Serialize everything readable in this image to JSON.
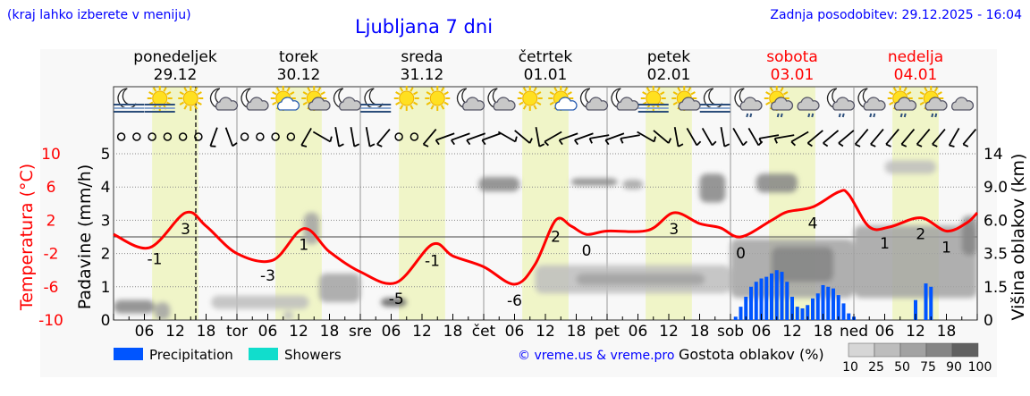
{
  "header": {
    "hint": "(kraj lahko izberete v meniju)",
    "title": "Ljubljana 7 dni",
    "updated": "Zadnja posodobitev: 29.12.2025 - 16:04"
  },
  "colors": {
    "temperature": "#ff0000",
    "precipitation": "#0055ff",
    "showers": "#11ddcc",
    "daylight": "#f0f5c8",
    "weekend": "#ff0000",
    "link": "#0000ff"
  },
  "days": [
    {
      "name": "ponedeljek",
      "date": "29.12",
      "abbr": "",
      "weekend": false
    },
    {
      "name": "torek",
      "date": "30.12",
      "abbr": "tor",
      "weekend": false
    },
    {
      "name": "sreda",
      "date": "31.12",
      "abbr": "sre",
      "weekend": false
    },
    {
      "name": "četrtek",
      "date": "01.01",
      "abbr": "čet",
      "weekend": false
    },
    {
      "name": "petek",
      "date": "02.01",
      "abbr": "pet",
      "weekend": false
    },
    {
      "name": "sobota",
      "date": "03.01",
      "abbr": "sob",
      "weekend": true
    },
    {
      "name": "nedelja",
      "date": "04.01",
      "abbr": "ned",
      "weekend": true
    }
  ],
  "hour_ticks": [
    "06",
    "12",
    "18"
  ],
  "icons": [
    "moon-fog",
    "sun-fog",
    "sun",
    "moon-cloud",
    "moon-cloud",
    "sun-cloud-light",
    "sun-cloud",
    "moon-cloud",
    "moon-fog",
    "sun",
    "sun",
    "moon-cloud",
    "moon-cloud",
    "sun",
    "sun-cloud-light",
    "moon-cloud",
    "moon-cloud",
    "sun-fog",
    "sun-cloud",
    "moon-fog",
    "moon-cloud-rain",
    "sun-cloud-rain",
    "cloud-rain",
    "moon-cloud-rain",
    "moon-cloud-rain",
    "sun-cloud-rain",
    "sun-cloud-rain",
    "cloud"
  ],
  "wind": [
    "calm",
    "calm",
    "calm",
    "calm",
    "calm",
    "calm",
    20,
    340,
    "calm",
    "calm",
    "calm",
    "calm",
    30,
    300,
    350,
    350,
    350,
    40,
    "calm",
    "calm",
    40,
    70,
    70,
    70,
    70,
    300,
    310,
    350,
    60,
    70,
    70,
    80,
    70,
    80,
    300,
    310,
    350,
    330,
    330,
    350,
    330,
    330,
    80,
    80,
    60,
    50,
    50,
    50,
    40,
    40,
    40,
    40,
    40,
    40,
    30,
    40
  ],
  "chart_data": {
    "type": "line",
    "time_unit": "hours from 29.12 00:00",
    "now_hour": 16,
    "daylight_hours": [
      7.5,
      16.5
    ],
    "temperature": {
      "axis_label": "Temperatura (°C)",
      "ticks": [
        10,
        6,
        2,
        -2,
        -6,
        -10
      ],
      "ylim": [
        -10,
        10
      ],
      "points": [
        [
          0,
          0.3
        ],
        [
          7,
          -1.3
        ],
        [
          14,
          2.9
        ],
        [
          18,
          1.3
        ],
        [
          24,
          -2.0
        ],
        [
          31,
          -2.8
        ],
        [
          37,
          1.0
        ],
        [
          42,
          -1.8
        ],
        [
          48,
          -4.2
        ],
        [
          55,
          -5.5
        ],
        [
          62,
          -0.9
        ],
        [
          66,
          -2.3
        ],
        [
          72,
          -3.6
        ],
        [
          78,
          -5.7
        ],
        [
          82,
          -3.3
        ],
        [
          86,
          2.0
        ],
        [
          89,
          1.3
        ],
        [
          92,
          0.3
        ],
        [
          96,
          0.7
        ],
        [
          104,
          0.8
        ],
        [
          109,
          2.9
        ],
        [
          114,
          1.6
        ],
        [
          118,
          1.1
        ],
        [
          122,
          0.0
        ],
        [
          128,
          2.0
        ],
        [
          131,
          3.0
        ],
        [
          136,
          3.6
        ],
        [
          141,
          5.4
        ],
        [
          143,
          5.1
        ],
        [
          147,
          1.2
        ],
        [
          151,
          1.2
        ],
        [
          157,
          2.3
        ],
        [
          162,
          0.7
        ],
        [
          166,
          1.7
        ],
        [
          168,
          2.9
        ]
      ],
      "extreme_labels": [
        [
          8,
          "-1"
        ],
        [
          14,
          "3"
        ],
        [
          30,
          "-3"
        ],
        [
          37,
          "1"
        ],
        [
          55,
          "-5"
        ],
        [
          62,
          "-1"
        ],
        [
          78,
          "-6"
        ],
        [
          86,
          "2"
        ],
        [
          92,
          "0"
        ],
        [
          109,
          "3"
        ],
        [
          122,
          "0"
        ],
        [
          136,
          "4"
        ],
        [
          150,
          "1"
        ],
        [
          157,
          "2"
        ],
        [
          162,
          "1"
        ]
      ]
    },
    "precipitation": {
      "axis_label": "Padavine (mm/h)",
      "ticks": [
        0,
        1,
        2,
        3,
        4,
        5
      ],
      "ylim": [
        0,
        5
      ],
      "bars": [
        [
          121,
          0.1
        ],
        [
          122,
          0.4
        ],
        [
          123,
          0.7
        ],
        [
          124,
          1.0
        ],
        [
          125,
          1.15
        ],
        [
          126,
          1.25
        ],
        [
          127,
          1.3
        ],
        [
          128,
          1.4
        ],
        [
          129,
          1.5
        ],
        [
          130,
          1.45
        ],
        [
          131,
          1.15
        ],
        [
          132,
          0.7
        ],
        [
          133,
          0.4
        ],
        [
          134,
          0.35
        ],
        [
          135,
          0.45
        ],
        [
          136,
          0.65
        ],
        [
          137,
          0.8
        ],
        [
          138,
          1.05
        ],
        [
          139,
          1.0
        ],
        [
          140,
          0.95
        ],
        [
          141,
          0.75
        ],
        [
          142,
          0.5
        ],
        [
          143,
          0.2
        ],
        [
          144,
          0.1
        ],
        [
          156,
          0.6
        ],
        [
          158,
          1.1
        ],
        [
          159,
          1.0
        ]
      ]
    },
    "cloud_height": {
      "axis_label": "Višina oblakov (km)",
      "ticks": [
        "0",
        "1.5",
        "3.5",
        "6.0",
        "9.0",
        "14"
      ],
      "areas": [
        [
          0,
          8,
          0.3,
          0.9,
          75
        ],
        [
          8,
          11,
          0,
          0.8,
          50
        ],
        [
          19,
          38,
          0.5,
          1.1,
          25
        ],
        [
          33,
          35,
          0,
          0.4,
          25
        ],
        [
          40,
          48,
          0.8,
          2.3,
          50
        ],
        [
          37,
          40,
          4.2,
          6.7,
          50
        ],
        [
          52,
          57,
          0.6,
          1.0,
          90
        ],
        [
          71,
          79,
          8.6,
          10.5,
          75
        ],
        [
          89,
          98,
          9.2,
          10.3,
          75
        ],
        [
          99,
          103,
          8.8,
          10.1,
          50
        ],
        [
          114,
          119,
          7.6,
          11,
          75
        ],
        [
          82,
          120,
          1.2,
          2.8,
          25
        ],
        [
          90,
          115,
          1.6,
          2.3,
          50
        ],
        [
          120,
          144,
          1.0,
          4.6,
          50
        ],
        [
          128,
          140,
          1.8,
          4.0,
          75
        ],
        [
          125,
          133,
          8.5,
          11,
          75
        ],
        [
          144,
          168,
          1.0,
          5.6,
          50
        ],
        [
          150,
          160,
          11,
          13,
          25
        ],
        [
          165,
          168,
          3.4,
          6.4,
          75
        ]
      ]
    },
    "legend": {
      "precipitation": "Precipitation",
      "showers": "Showers",
      "cloud_density": "Gostota oblakov (%)",
      "density_levels": [
        "10",
        "25",
        "50",
        "75",
        "90",
        "100"
      ]
    }
  },
  "footer": {
    "credit": "© vreme.us & vreme.pro"
  }
}
